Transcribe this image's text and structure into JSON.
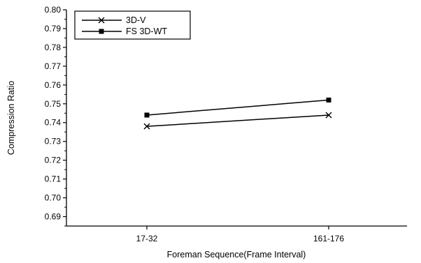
{
  "chart_data": {
    "type": "line",
    "title": "",
    "xlabel": "Foreman Sequence(Frame Interval)",
    "ylabel": "Compression Ratio",
    "categories": [
      "17-32",
      "161-176"
    ],
    "ylim": [
      0.685,
      0.8
    ],
    "yticks": [
      "0.69",
      "0.70",
      "0.71",
      "0.72",
      "0.73",
      "0.74",
      "0.75",
      "0.76",
      "0.77",
      "0.78",
      "0.79",
      "0.80"
    ],
    "grid": false,
    "legend_position": "top-left",
    "series": [
      {
        "name": "3D-V",
        "marker": "x",
        "color": "#000000",
        "values": [
          0.738,
          0.744
        ]
      },
      {
        "name": "FS 3D-WT",
        "marker": "square",
        "color": "#000000",
        "values": [
          0.744,
          0.752
        ]
      }
    ]
  }
}
